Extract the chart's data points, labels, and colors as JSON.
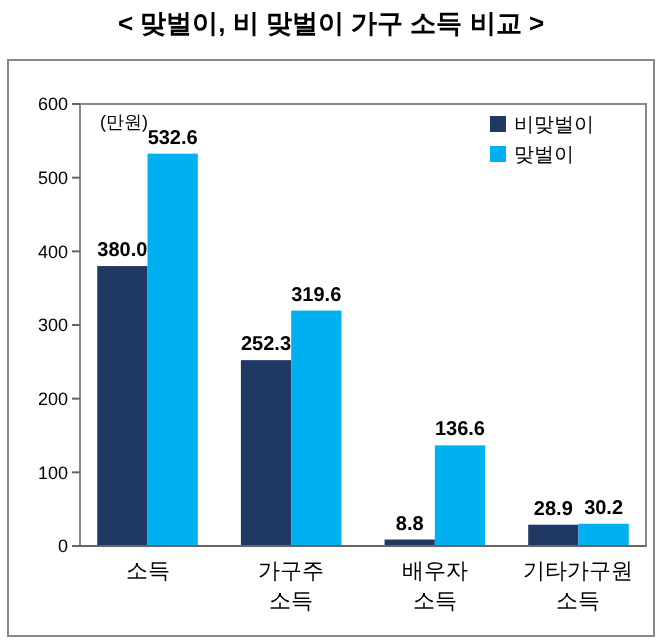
{
  "chart_data": {
    "type": "bar",
    "title": "< 맞벌이, 비 맞벌이 가구 소득 비교 >",
    "annotations": [
      "(만원)"
    ],
    "categories": [
      "소득",
      "가구주\n소득",
      "배우자\n소득",
      "기타가구원\n소득"
    ],
    "series": [
      {
        "name": "비맞벌이",
        "color": "#1f3864",
        "values": [
          380.0,
          252.3,
          8.8,
          28.9
        ],
        "value_labels": [
          "380.0",
          "252.3",
          "8.8",
          "28.9"
        ]
      },
      {
        "name": "맞벌이",
        "color": "#00b0f0",
        "values": [
          532.6,
          319.6,
          136.6,
          30.2
        ],
        "value_labels": [
          "532.6",
          "319.6",
          "136.6",
          "30.2"
        ]
      }
    ],
    "ylim": [
      0,
      600
    ],
    "yticks": [
      0,
      100,
      200,
      300,
      400,
      500,
      600
    ],
    "grid": false,
    "legend": "top right"
  }
}
